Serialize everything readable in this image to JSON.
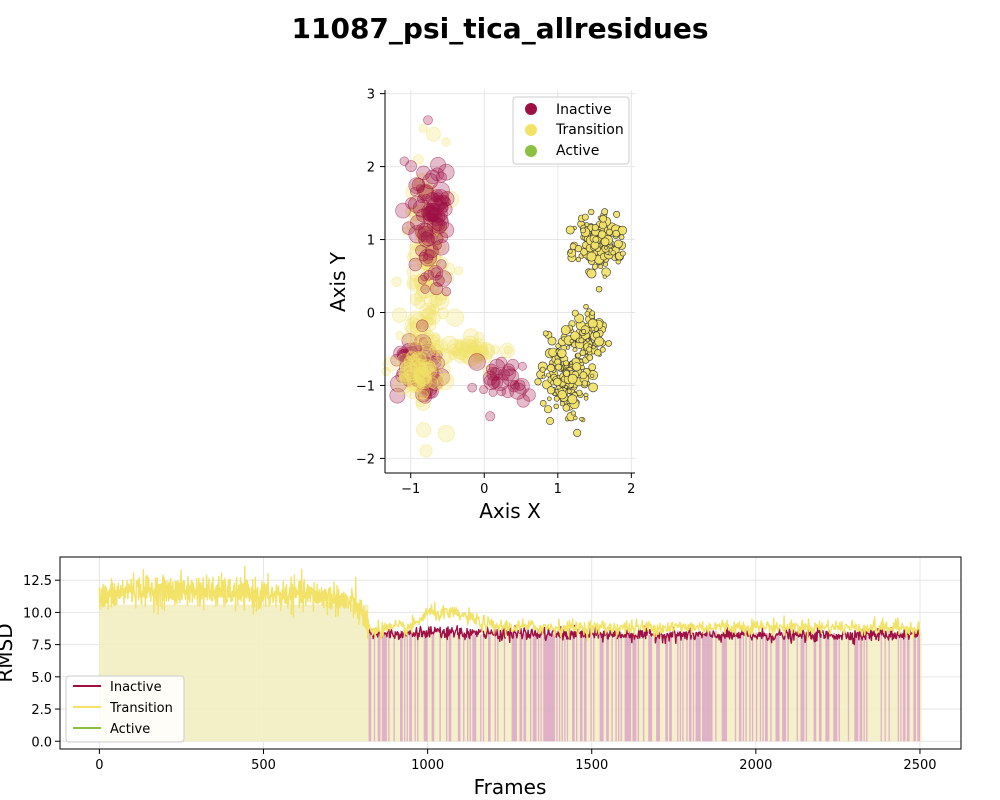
{
  "figure": {
    "title": "11087_psi_tica_allresidues"
  },
  "colors": {
    "inactive": "#9e1044",
    "transition": "#f2e268",
    "active": "#8cc043",
    "transition_fill": "#f2eec2",
    "inactive_fill": "#dca6c0"
  },
  "chart_data": [
    {
      "type": "scatter",
      "title": "",
      "xlabel": "Axis X",
      "ylabel": "Axis Y",
      "xlim": [
        -1.35,
        2.05
      ],
      "ylim": [
        -2.2,
        3.05
      ],
      "xticks": [
        -1,
        0,
        1,
        2
      ],
      "yticks": [
        -2,
        -1,
        0,
        1,
        2,
        3
      ],
      "grid": true,
      "legend": {
        "placement": "upper-right",
        "entries": [
          "Inactive",
          "Transition",
          "Active"
        ]
      },
      "clusters": [
        {
          "state": "Transition",
          "center": [
            -0.75,
            0.45
          ],
          "spread": [
            0.15,
            0.8
          ],
          "count": 120,
          "style": "faded"
        },
        {
          "state": "Inactive",
          "center": [
            -0.7,
            1.3
          ],
          "spread": [
            0.14,
            0.5
          ],
          "count": 90,
          "style": "faded"
        },
        {
          "state": "Inactive",
          "center": [
            -0.9,
            -0.75
          ],
          "spread": [
            0.14,
            0.18
          ],
          "count": 70,
          "style": "faded"
        },
        {
          "state": "Transition",
          "center": [
            -0.9,
            -0.8
          ],
          "spread": [
            0.15,
            0.17
          ],
          "count": 60,
          "style": "faded"
        },
        {
          "state": "Transition",
          "center": [
            -0.2,
            -0.55
          ],
          "spread": [
            0.22,
            0.12
          ],
          "count": 40,
          "style": "faded"
        },
        {
          "state": "Inactive",
          "center": [
            0.3,
            -0.95
          ],
          "spread": [
            0.18,
            0.18
          ],
          "count": 30,
          "style": "faded"
        },
        {
          "state": "Transition",
          "center": [
            1.1,
            -0.9
          ],
          "spread": [
            0.15,
            0.25
          ],
          "count": 160,
          "style": "solid"
        },
        {
          "state": "Transition",
          "center": [
            1.4,
            -0.35
          ],
          "spread": [
            0.15,
            0.18
          ],
          "count": 80,
          "style": "solid"
        },
        {
          "state": "Transition",
          "center": [
            1.55,
            0.95
          ],
          "spread": [
            0.15,
            0.17
          ],
          "count": 190,
          "style": "solid"
        }
      ]
    },
    {
      "type": "line",
      "title": "",
      "xlabel": "Frames",
      "ylabel": "RMSD",
      "xlim": [
        -120,
        2625
      ],
      "ylim": [
        -0.6,
        14.3
      ],
      "xticks": [
        0,
        500,
        1000,
        1500,
        2000,
        2500
      ],
      "yticks": [
        0.0,
        2.5,
        5.0,
        7.5,
        10.0,
        12.5
      ],
      "grid": true,
      "legend": {
        "placement": "lower-left",
        "entries": [
          "Inactive",
          "Transition",
          "Active"
        ]
      },
      "segments": [
        {
          "state": "Transition",
          "x": [
            0,
            820
          ],
          "level_points": [
            [
              0,
              11.0
            ],
            [
              100,
              11.8
            ],
            [
              200,
              11.6
            ],
            [
              300,
              11.7
            ],
            [
              400,
              11.5
            ],
            [
              500,
              11.3
            ],
            [
              600,
              11.4
            ],
            [
              700,
              11.2
            ],
            [
              780,
              10.6
            ],
            [
              820,
              9.0
            ]
          ],
          "noise": 0.6
        },
        {
          "state": "Inactive",
          "x": [
            820,
            2500
          ],
          "level_points": [
            [
              820,
              8.4
            ],
            [
              1000,
              8.4
            ],
            [
              1500,
              8.3
            ],
            [
              2000,
              8.2
            ],
            [
              2500,
              8.3
            ]
          ],
          "noise": 0.25
        },
        {
          "state": "Transition",
          "x": [
            820,
            2500
          ],
          "level_points": [
            [
              820,
              8.7
            ],
            [
              950,
              8.8
            ],
            [
              1000,
              10.0
            ],
            [
              1100,
              9.8
            ],
            [
              1200,
              8.9
            ],
            [
              1500,
              8.8
            ],
            [
              2000,
              8.9
            ],
            [
              2500,
              8.8
            ]
          ],
          "noise": 0.3
        }
      ]
    }
  ]
}
